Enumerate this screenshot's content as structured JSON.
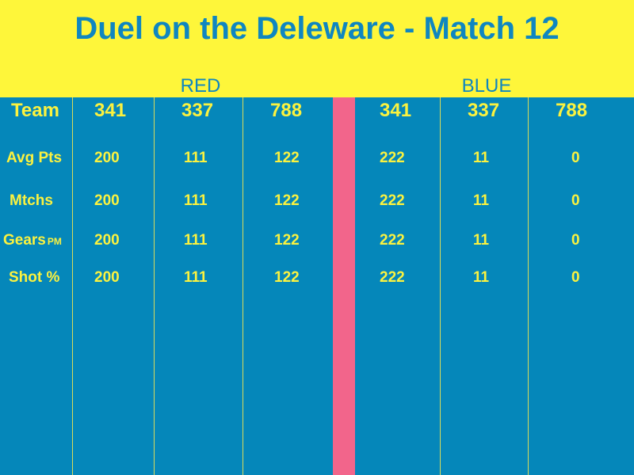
{
  "title": "Duel on the Deleware - Match 12",
  "alliances": {
    "red_label": "RED",
    "blue_label": "BLUE"
  },
  "team_row": {
    "label": "Team",
    "red": [
      "341",
      "337",
      "788"
    ],
    "blue": [
      "341",
      "337",
      "788"
    ]
  },
  "stat_rows": [
    {
      "label": "Avg Pts",
      "suffix": "",
      "red": [
        "200",
        "111",
        "122"
      ],
      "blue": [
        "222",
        "11",
        "0"
      ]
    },
    {
      "label": "Mtchs",
      "suffix": "",
      "red": [
        "200",
        "111",
        "122"
      ],
      "blue": [
        "222",
        "11",
        "0"
      ]
    },
    {
      "label": "Gears",
      "suffix": "PM",
      "red": [
        "200",
        "111",
        "122"
      ],
      "blue": [
        "222",
        "11",
        "0"
      ]
    },
    {
      "label": "Shot %",
      "suffix": "",
      "red": [
        "200",
        "111",
        "122"
      ],
      "blue": [
        "222",
        "11",
        "0"
      ]
    }
  ],
  "colors": {
    "header_bg": "#fef63a",
    "body_bg": "#0587ba",
    "title_text": "#0f86c0",
    "value_text": "#fbf23f",
    "divider": "#f2658b"
  }
}
